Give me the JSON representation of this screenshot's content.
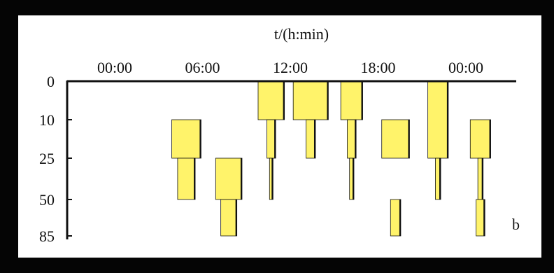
{
  "chart_data": {
    "type": "bar",
    "subtype": "floating-depth-profile",
    "x_axis_title": "t/(h:min)",
    "x_axis_position": "top",
    "x_ticks": [
      "00:00",
      "06:00",
      "12:00",
      "18:00",
      "00:00"
    ],
    "y_ticks": [
      "0",
      "10",
      "25",
      "50",
      "85"
    ],
    "y_reversed": true,
    "panel_label": "b",
    "grid": false,
    "legend": "none",
    "colors": {
      "fill": "#fff36a",
      "edge": "#111111",
      "background": "#ffffff"
    },
    "series": [
      {
        "name": "",
        "segments": [
          {
            "x_center": 4.9,
            "half_width": 1.0,
            "y_top": 10,
            "y_bottom": 25
          },
          {
            "x_center": 4.9,
            "half_width": 0.6,
            "y_top": 25,
            "y_bottom": 50
          }
        ]
      },
      {
        "name": "",
        "segments": [
          {
            "x_center": 7.8,
            "half_width": 0.9,
            "y_top": 25,
            "y_bottom": 50
          },
          {
            "x_center": 7.8,
            "half_width": 0.55,
            "y_top": 50,
            "y_bottom": 85
          }
        ]
      },
      {
        "name": "",
        "segments": [
          {
            "x_center": 10.7,
            "half_width": 0.9,
            "y_top": 0,
            "y_bottom": 10
          },
          {
            "x_center": 10.7,
            "half_width": 0.3,
            "y_top": 10,
            "y_bottom": 25
          },
          {
            "x_center": 10.7,
            "half_width": 0.12,
            "y_top": 25,
            "y_bottom": 50
          }
        ]
      },
      {
        "name": "",
        "segments": [
          {
            "x_center": 13.4,
            "half_width": 1.2,
            "y_top": 0,
            "y_bottom": 10
          },
          {
            "x_center": 13.4,
            "half_width": 0.32,
            "y_top": 10,
            "y_bottom": 25
          }
        ]
      },
      {
        "name": "",
        "segments": [
          {
            "x_center": 16.2,
            "half_width": 0.75,
            "y_top": 0,
            "y_bottom": 10
          },
          {
            "x_center": 16.2,
            "half_width": 0.3,
            "y_top": 10,
            "y_bottom": 25
          },
          {
            "x_center": 16.2,
            "half_width": 0.15,
            "y_top": 25,
            "y_bottom": 50
          }
        ]
      },
      {
        "name": "",
        "segments": [
          {
            "x_center": 19.2,
            "half_width": 0.95,
            "y_top": 10,
            "y_bottom": 25
          },
          {
            "x_center": 19.2,
            "half_width": 0.35,
            "y_top": 50,
            "y_bottom": 85
          }
        ]
      },
      {
        "name": "",
        "segments": [
          {
            "x_center": 22.1,
            "half_width": 0.7,
            "y_top": 0,
            "y_bottom": 25
          },
          {
            "x_center": 22.1,
            "half_width": 0.18,
            "y_top": 25,
            "y_bottom": 50
          }
        ]
      },
      {
        "name": "",
        "segments": [
          {
            "x_center": 25.0,
            "half_width": 0.7,
            "y_top": 10,
            "y_bottom": 25
          },
          {
            "x_center": 25.0,
            "half_width": 0.18,
            "y_top": 25,
            "y_bottom": 50
          },
          {
            "x_center": 25.0,
            "half_width": 0.3,
            "y_top": 50,
            "y_bottom": 85
          }
        ]
      }
    ]
  }
}
